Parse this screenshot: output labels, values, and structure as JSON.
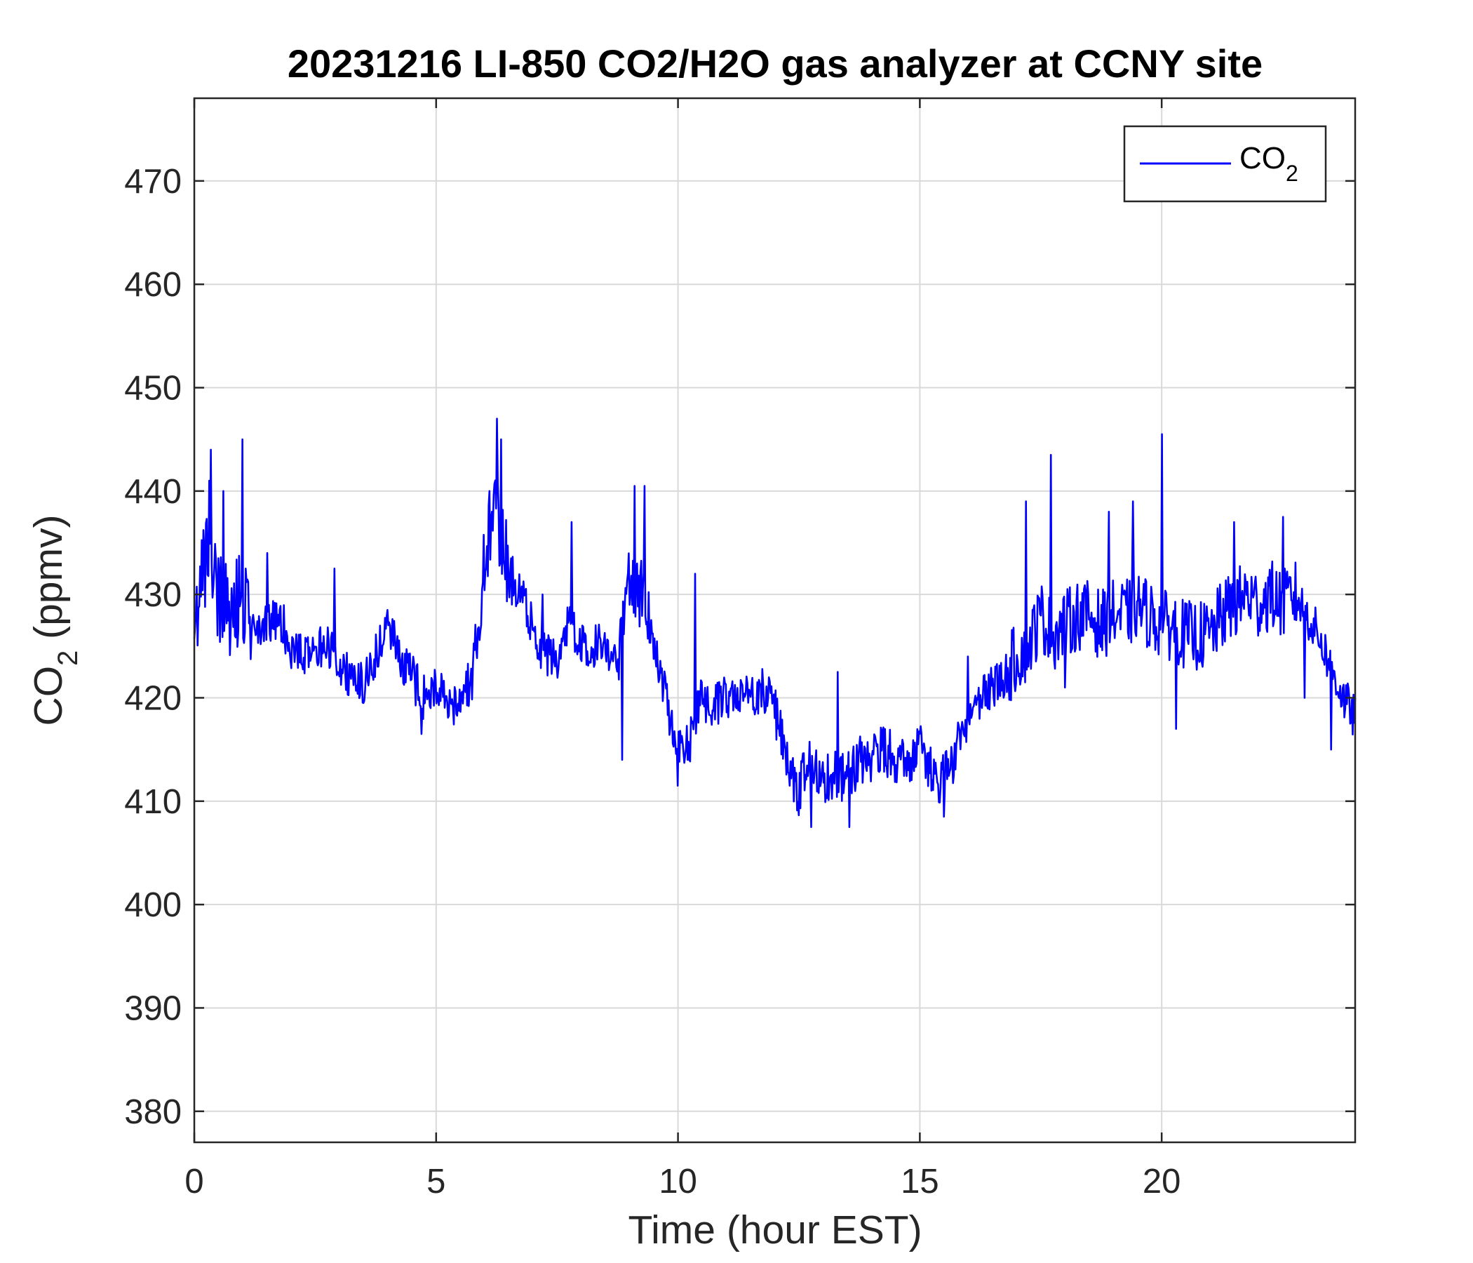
{
  "chart_data": {
    "type": "line",
    "title": "20231216 LI-850 CO2/H2O gas analyzer at CCNY site",
    "xlabel": "Time (hour EST)",
    "ylabel": {
      "base": "CO",
      "sub": "2",
      "rest": " (ppmv)"
    },
    "xlim": [
      0,
      24
    ],
    "ylim": [
      377,
      478
    ],
    "xticks": [
      0,
      5,
      10,
      15,
      20
    ],
    "yticks": [
      380,
      390,
      400,
      410,
      420,
      430,
      440,
      450,
      460,
      470
    ],
    "grid": true,
    "box": true,
    "legend": {
      "position": "top-right",
      "entries": [
        {
          "base": "CO",
          "sub": "2"
        }
      ]
    },
    "series": [
      {
        "name": {
          "base": "CO",
          "sub": "2"
        },
        "color": "#0000ff",
        "x": [
          0,
          0.25,
          0.5,
          0.75,
          1,
          1.25,
          1.5,
          1.75,
          2,
          2.25,
          2.5,
          2.75,
          3,
          3.25,
          3.5,
          3.75,
          4,
          4.25,
          4.5,
          4.75,
          5,
          5.25,
          5.5,
          5.75,
          6,
          6.25,
          6.5,
          6.75,
          7,
          7.25,
          7.5,
          7.75,
          8,
          8.25,
          8.5,
          8.75,
          9,
          9.25,
          9.5,
          9.75,
          10,
          10.25,
          10.5,
          10.75,
          11,
          11.25,
          11.5,
          11.75,
          12,
          12.25,
          12.5,
          12.75,
          13,
          13.25,
          13.5,
          13.75,
          14,
          14.25,
          14.5,
          14.75,
          15,
          15.25,
          15.5,
          15.75,
          16,
          16.25,
          16.5,
          16.75,
          17,
          17.25,
          17.5,
          17.75,
          18,
          18.25,
          18.5,
          18.75,
          19,
          19.25,
          19.5,
          19.75,
          20,
          20.25,
          20.5,
          20.75,
          21,
          21.25,
          21.5,
          21.75,
          22,
          22.25,
          22.5,
          22.75,
          23,
          23.25,
          23.5,
          23.75,
          24
        ],
        "y": [
          428,
          433,
          430,
          428,
          430,
          426,
          427,
          428,
          425,
          424,
          425,
          425,
          423,
          422,
          421,
          424,
          427,
          424,
          422,
          420,
          421,
          419,
          420,
          422,
          433,
          438,
          432,
          430,
          427,
          424,
          424,
          428,
          425,
          425,
          426,
          422,
          432,
          430,
          426,
          420,
          415,
          416,
          420,
          419,
          420,
          421,
          420,
          421,
          419,
          414,
          411,
          415,
          412,
          413,
          412,
          414,
          414,
          415,
          414,
          414,
          415,
          413,
          412,
          415,
          418,
          420,
          421,
          422,
          424,
          425,
          428,
          426,
          427,
          428,
          428,
          427,
          428,
          428,
          429,
          428,
          427,
          427,
          426,
          426,
          426,
          428,
          429,
          430,
          429,
          430,
          429,
          430,
          428,
          426,
          423,
          420,
          418
        ],
        "spikes": [
          {
            "x": 0.3,
            "y": 441
          },
          {
            "x": 0.35,
            "y": 444
          },
          {
            "x": 0.6,
            "y": 440
          },
          {
            "x": 1.0,
            "y": 445
          },
          {
            "x": 1.5,
            "y": 434
          },
          {
            "x": 2.9,
            "y": 432.5
          },
          {
            "x": 4.0,
            "y": 428.5
          },
          {
            "x": 4.7,
            "y": 416.5
          },
          {
            "x": 6.1,
            "y": 440
          },
          {
            "x": 6.25,
            "y": 447
          },
          {
            "x": 6.35,
            "y": 445
          },
          {
            "x": 7.2,
            "y": 430
          },
          {
            "x": 7.8,
            "y": 437
          },
          {
            "x": 8.85,
            "y": 414
          },
          {
            "x": 9.1,
            "y": 440.5
          },
          {
            "x": 9.3,
            "y": 440.5
          },
          {
            "x": 10.0,
            "y": 411.5
          },
          {
            "x": 10.35,
            "y": 432
          },
          {
            "x": 12.75,
            "y": 407.5
          },
          {
            "x": 13.3,
            "y": 422.5
          },
          {
            "x": 13.55,
            "y": 407.5
          },
          {
            "x": 15.5,
            "y": 408.5
          },
          {
            "x": 16.0,
            "y": 424
          },
          {
            "x": 17.2,
            "y": 439
          },
          {
            "x": 17.7,
            "y": 443.5
          },
          {
            "x": 18.0,
            "y": 421
          },
          {
            "x": 18.9,
            "y": 438
          },
          {
            "x": 19.4,
            "y": 439
          },
          {
            "x": 20.0,
            "y": 445.5
          },
          {
            "x": 20.3,
            "y": 417
          },
          {
            "x": 21.5,
            "y": 437
          },
          {
            "x": 22.5,
            "y": 437.5
          },
          {
            "x": 22.95,
            "y": 420
          },
          {
            "x": 23.5,
            "y": 415
          }
        ]
      }
    ]
  }
}
